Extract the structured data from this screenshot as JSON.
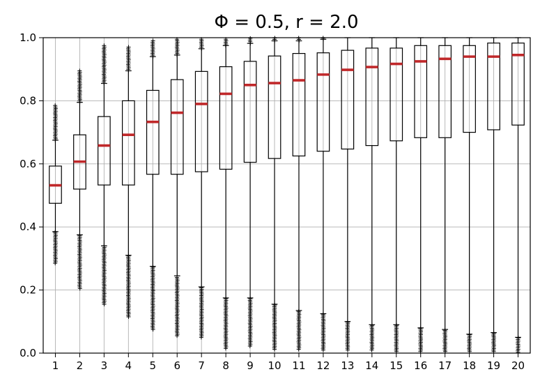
{
  "chart_data": {
    "type": "box",
    "title": "Φ = 0.5, r = 2.0",
    "xlabel": "",
    "ylabel": "",
    "ylim": [
      0,
      1.0
    ],
    "yticks": [
      "0.0",
      "0.2",
      "0.4",
      "0.6",
      "0.8",
      "1.0"
    ],
    "grid": true,
    "median_color": "#c0282a",
    "box_color": "#000000",
    "categories": [
      "1",
      "2",
      "3",
      "4",
      "5",
      "6",
      "7",
      "8",
      "9",
      "10",
      "11",
      "12",
      "13",
      "14",
      "15",
      "16",
      "17",
      "18",
      "19",
      "20"
    ],
    "boxes": [
      {
        "q1": 0.475,
        "median": 0.532,
        "q3": 0.593,
        "whislo": 0.385,
        "whishi": 0.675,
        "fliers_low": [
          0.285,
          0.383
        ],
        "fliers_high": [
          0.675,
          0.785
        ]
      },
      {
        "q1": 0.52,
        "median": 0.607,
        "q3": 0.692,
        "whislo": 0.375,
        "whishi": 0.795,
        "fliers_low": [
          0.205,
          0.372
        ],
        "fliers_high": [
          0.795,
          0.895
        ]
      },
      {
        "q1": 0.533,
        "median": 0.658,
        "q3": 0.75,
        "whislo": 0.34,
        "whishi": 0.855,
        "fliers_low": [
          0.155,
          0.34
        ],
        "fliers_high": [
          0.855,
          0.975
        ]
      },
      {
        "q1": 0.533,
        "median": 0.692,
        "q3": 0.8,
        "whislo": 0.31,
        "whishi": 0.895,
        "fliers_low": [
          0.115,
          0.308
        ],
        "fliers_high": [
          0.895,
          0.97
        ]
      },
      {
        "q1": 0.567,
        "median": 0.733,
        "q3": 0.833,
        "whislo": 0.275,
        "whishi": 0.94,
        "fliers_low": [
          0.075,
          0.272
        ],
        "fliers_high": [
          0.94,
          0.99
        ]
      },
      {
        "q1": 0.567,
        "median": 0.762,
        "q3": 0.867,
        "whislo": 0.245,
        "whishi": 0.945,
        "fliers_low": [
          0.055,
          0.24
        ],
        "fliers_high": [
          0.945,
          0.995
        ]
      },
      {
        "q1": 0.575,
        "median": 0.79,
        "q3": 0.893,
        "whislo": 0.21,
        "whishi": 0.965,
        "fliers_low": [
          0.05,
          0.207
        ],
        "fliers_high": [
          0.965,
          0.995
        ]
      },
      {
        "q1": 0.583,
        "median": 0.822,
        "q3": 0.908,
        "whislo": 0.175,
        "whishi": 0.975,
        "fliers_low": [
          0.015,
          0.172
        ],
        "fliers_high": [
          0.975,
          0.995
        ]
      },
      {
        "q1": 0.605,
        "median": 0.85,
        "q3": 0.925,
        "whislo": 0.175,
        "whishi": 0.982,
        "fliers_low": [
          0.022,
          0.172
        ],
        "fliers_high": [
          0.982,
          0.998
        ]
      },
      {
        "q1": 0.617,
        "median": 0.856,
        "q3": 0.942,
        "whislo": 0.155,
        "whishi": 0.99,
        "fliers_low": [
          0.012,
          0.152
        ],
        "fliers_high": [
          0.99,
          0.999
        ]
      },
      {
        "q1": 0.625,
        "median": 0.865,
        "q3": 0.95,
        "whislo": 0.135,
        "whishi": 0.99,
        "fliers_low": [
          0.012,
          0.132
        ],
        "fliers_high": [
          0.99,
          0.999
        ]
      },
      {
        "q1": 0.64,
        "median": 0.883,
        "q3": 0.952,
        "whislo": 0.125,
        "whishi": 0.995,
        "fliers_low": [
          0.01,
          0.122
        ],
        "fliers_high": [
          0.995,
          0.999
        ]
      },
      {
        "q1": 0.647,
        "median": 0.898,
        "q3": 0.96,
        "whislo": 0.1,
        "whishi": 1.0,
        "fliers_low": [
          0.01,
          0.098
        ],
        "fliers_high": []
      },
      {
        "q1": 0.658,
        "median": 0.907,
        "q3": 0.967,
        "whislo": 0.09,
        "whishi": 1.0,
        "fliers_low": [
          0.01,
          0.088
        ],
        "fliers_high": []
      },
      {
        "q1": 0.673,
        "median": 0.917,
        "q3": 0.967,
        "whislo": 0.09,
        "whishi": 1.0,
        "fliers_low": [
          0.005,
          0.088
        ],
        "fliers_high": []
      },
      {
        "q1": 0.683,
        "median": 0.925,
        "q3": 0.975,
        "whislo": 0.08,
        "whishi": 1.0,
        "fliers_low": [
          0.005,
          0.078
        ],
        "fliers_high": []
      },
      {
        "q1": 0.683,
        "median": 0.933,
        "q3": 0.975,
        "whislo": 0.075,
        "whishi": 1.0,
        "fliers_low": [
          0.005,
          0.072
        ],
        "fliers_high": []
      },
      {
        "q1": 0.7,
        "median": 0.94,
        "q3": 0.975,
        "whislo": 0.06,
        "whishi": 1.0,
        "fliers_low": [
          0.005,
          0.058
        ],
        "fliers_high": []
      },
      {
        "q1": 0.708,
        "median": 0.94,
        "q3": 0.983,
        "whislo": 0.065,
        "whishi": 1.0,
        "fliers_low": [
          0.005,
          0.062
        ],
        "fliers_high": []
      },
      {
        "q1": 0.723,
        "median": 0.945,
        "q3": 0.983,
        "whislo": 0.05,
        "whishi": 1.0,
        "fliers_low": [
          0.002,
          0.048
        ],
        "fliers_high": []
      }
    ]
  }
}
